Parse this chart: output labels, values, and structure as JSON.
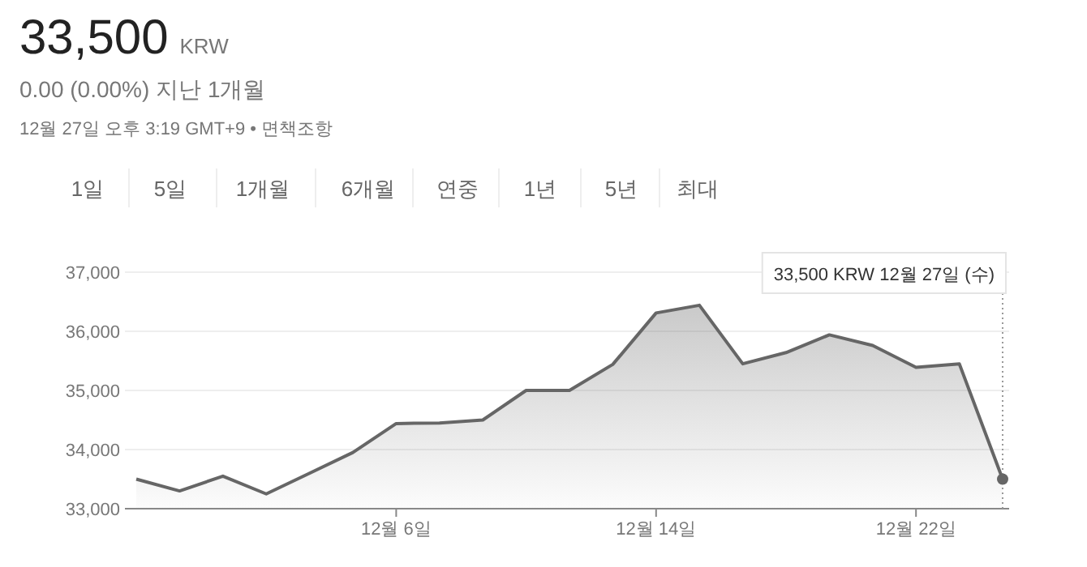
{
  "chart_data": {
    "type": "area",
    "title": "33,500",
    "subtitle": "0.00 (0.00%) 지난 1개월",
    "annotations": [
      "KRW",
      "12월 27일 오후 3:19 GMT+9 • 면책조항",
      "1일",
      "5일",
      "1개월",
      "6개월",
      "연중",
      "1년",
      "5년",
      "최대",
      "33,500 KRW  12월 27일 (수)"
    ],
    "categories": [
      null,
      null,
      null,
      null,
      null,
      null,
      "12월 6일",
      null,
      null,
      null,
      null,
      null,
      "12월 14일",
      null,
      null,
      null,
      null,
      null,
      "12월 22일",
      null,
      null
    ],
    "series": [
      {
        "color": "#666666",
        "values": [
          33500,
          33300,
          33550,
          33250,
          33600,
          33950,
          34440,
          34450,
          34500,
          35000,
          35000,
          35440,
          36310,
          36440,
          35450,
          35640,
          35940,
          35760,
          35390,
          35450,
          33500
        ]
      }
    ],
    "ylim": [
      33000,
      37000
    ],
    "yticks": [
      {
        "value": 33000,
        "label": "33,000"
      },
      {
        "value": 34000,
        "label": "34,000"
      },
      {
        "value": 35000,
        "label": "35,000"
      },
      {
        "value": 36000,
        "label": "36,000"
      },
      {
        "value": 37000,
        "label": "37,000"
      }
    ],
    "grid": "y"
  }
}
